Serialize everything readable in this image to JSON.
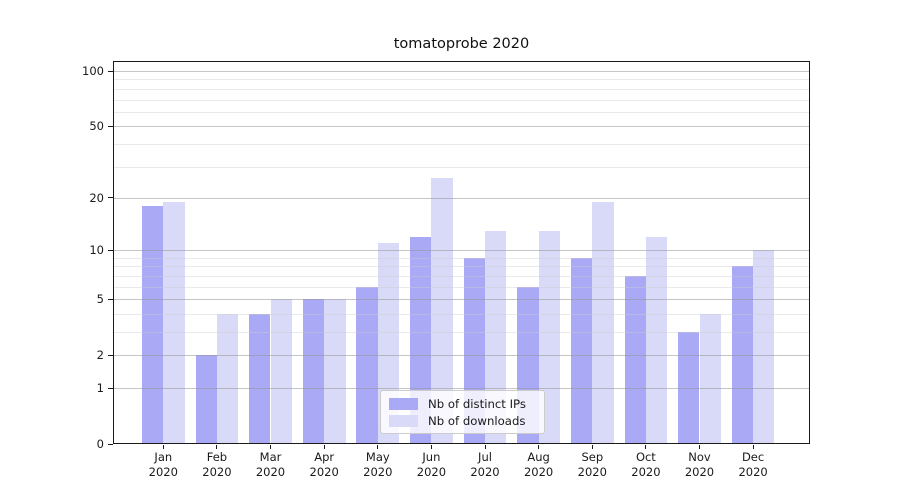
{
  "chart_data": {
    "type": "bar",
    "title": "tomatoprobe 2020",
    "categories": [
      "Jan 2020",
      "Feb 2020",
      "Mar 2020",
      "Apr 2020",
      "May 2020",
      "Jun 2020",
      "Jul 2020",
      "Aug 2020",
      "Sep 2020",
      "Oct 2020",
      "Nov 2020",
      "Dec 2020"
    ],
    "month_labels": [
      "Jan",
      "Feb",
      "Mar",
      "Apr",
      "May",
      "Jun",
      "Jul",
      "Aug",
      "Sep",
      "Oct",
      "Nov",
      "Dec"
    ],
    "year_label": "2020",
    "series": [
      {
        "name": "Nb of distinct IPs",
        "color": "#a9a9f5",
        "values": [
          18,
          2,
          4,
          5,
          6,
          12,
          9,
          6,
          9,
          7,
          3,
          8
        ]
      },
      {
        "name": "Nb of downloads",
        "color": "#d9d9f8",
        "values": [
          19,
          4,
          5,
          5,
          11,
          26,
          13,
          13,
          19,
          12,
          4,
          10
        ]
      }
    ],
    "xlabel": "",
    "ylabel": "",
    "yscale": "log1p",
    "ylim": [
      0,
      113
    ],
    "yticks": [
      100,
      50,
      20,
      10,
      5,
      2,
      1,
      0
    ],
    "yticks_minor": [
      3,
      4,
      6,
      7,
      8,
      9,
      30,
      40,
      60,
      70,
      80,
      90
    ],
    "grid": "horizontal",
    "legend_position": "lower center"
  },
  "colors": {
    "series1": "#a9a9f5",
    "series2": "#d9d9f8",
    "grid_major": "#c8c8c8",
    "grid_minor": "#ebebeb",
    "spine": "#1a1a1a",
    "text": "#1a1a1a",
    "legend_border": "#cccccc",
    "background": "#ffffff"
  }
}
